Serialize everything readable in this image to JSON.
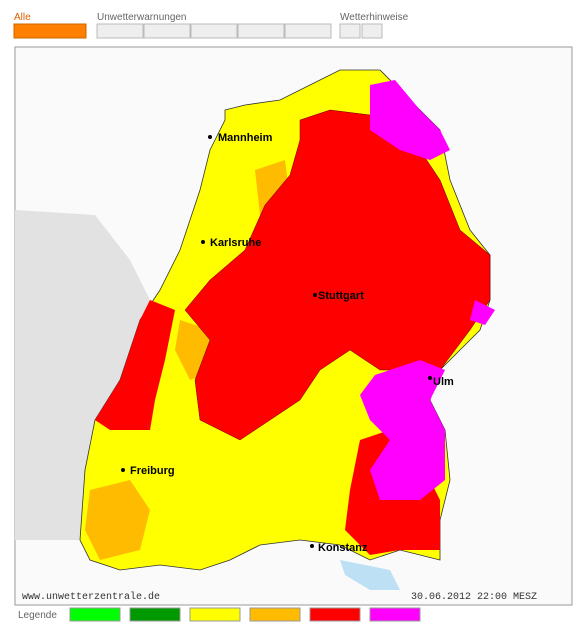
{
  "toolbar": {
    "all": "Alle",
    "warnings": "Unwetterwarnungen",
    "hints": "Wetterhinweise"
  },
  "map": {
    "cities": [
      "Mannheim",
      "Karlsruhe",
      "Stuttgart",
      "Ulm",
      "Freiburg",
      "Konstanz"
    ],
    "source": "www.unwetterzentrale.de",
    "timestamp": "30.06.2012 22:00 MESZ"
  },
  "legend": {
    "title": "Legende",
    "colors": [
      "#00ff00",
      "#009900",
      "#ffff00",
      "#ffbb00",
      "#ff0000",
      "#ff00ff"
    ]
  }
}
